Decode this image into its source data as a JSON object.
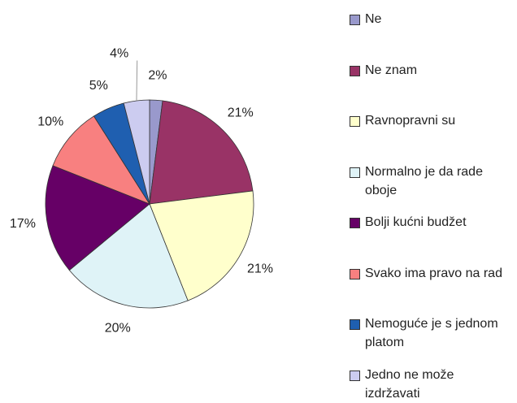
{
  "chart_data": {
    "type": "pie",
    "categories": [
      "Ne",
      "Ne znam",
      "Ravnopravni su",
      "Normalno je da rade oboje",
      "Bolji kućni budžet",
      "Svako ima pravo na rad",
      "Nemoguće je s jednom platom",
      "Jedno ne može izdržavati"
    ],
    "values": [
      2,
      21,
      21,
      20,
      17,
      10,
      5,
      4
    ],
    "value_labels": [
      "2%",
      "21%",
      "21%",
      "20%",
      "17%",
      "10%",
      "5%",
      "4%"
    ],
    "colors": [
      "#9999cc",
      "#993366",
      "#ffffcc",
      "#dff3f7",
      "#660066",
      "#f88080",
      "#1f5fb0",
      "#ccccf0"
    ],
    "legend": "right"
  }
}
